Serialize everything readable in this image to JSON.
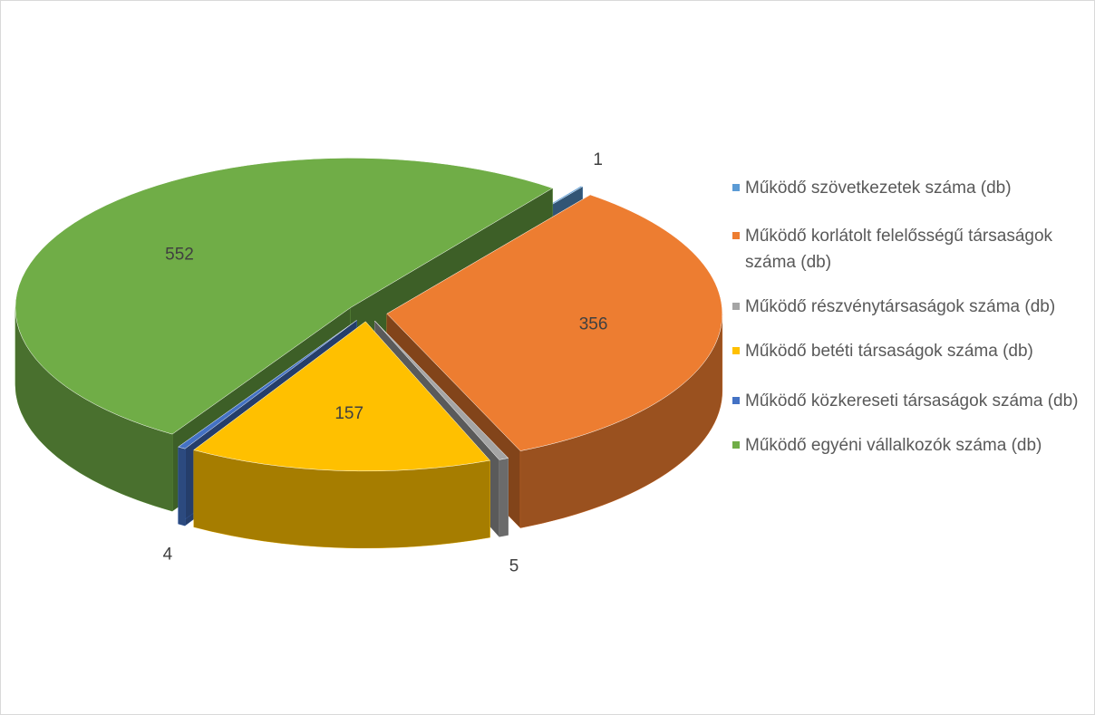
{
  "chart_data": {
    "type": "pie3d",
    "categories": [
      "Működő szövetkezetek száma (db)",
      "Működő korlátolt felelősségű társaságok száma (db)",
      "Működő részvénytársaságok száma (db)",
      "Működő betéti társaságok száma (db)",
      "Működő közkereseti társaságok száma (db)",
      "Működő egyéni vállalkozók száma (db)"
    ],
    "values": [
      1,
      356,
      5,
      157,
      4,
      552
    ],
    "colors": [
      "#5b9bd5",
      "#ed7d31",
      "#a5a5a5",
      "#ffc000",
      "#4472c4",
      "#70ad47"
    ],
    "legend": "right"
  }
}
